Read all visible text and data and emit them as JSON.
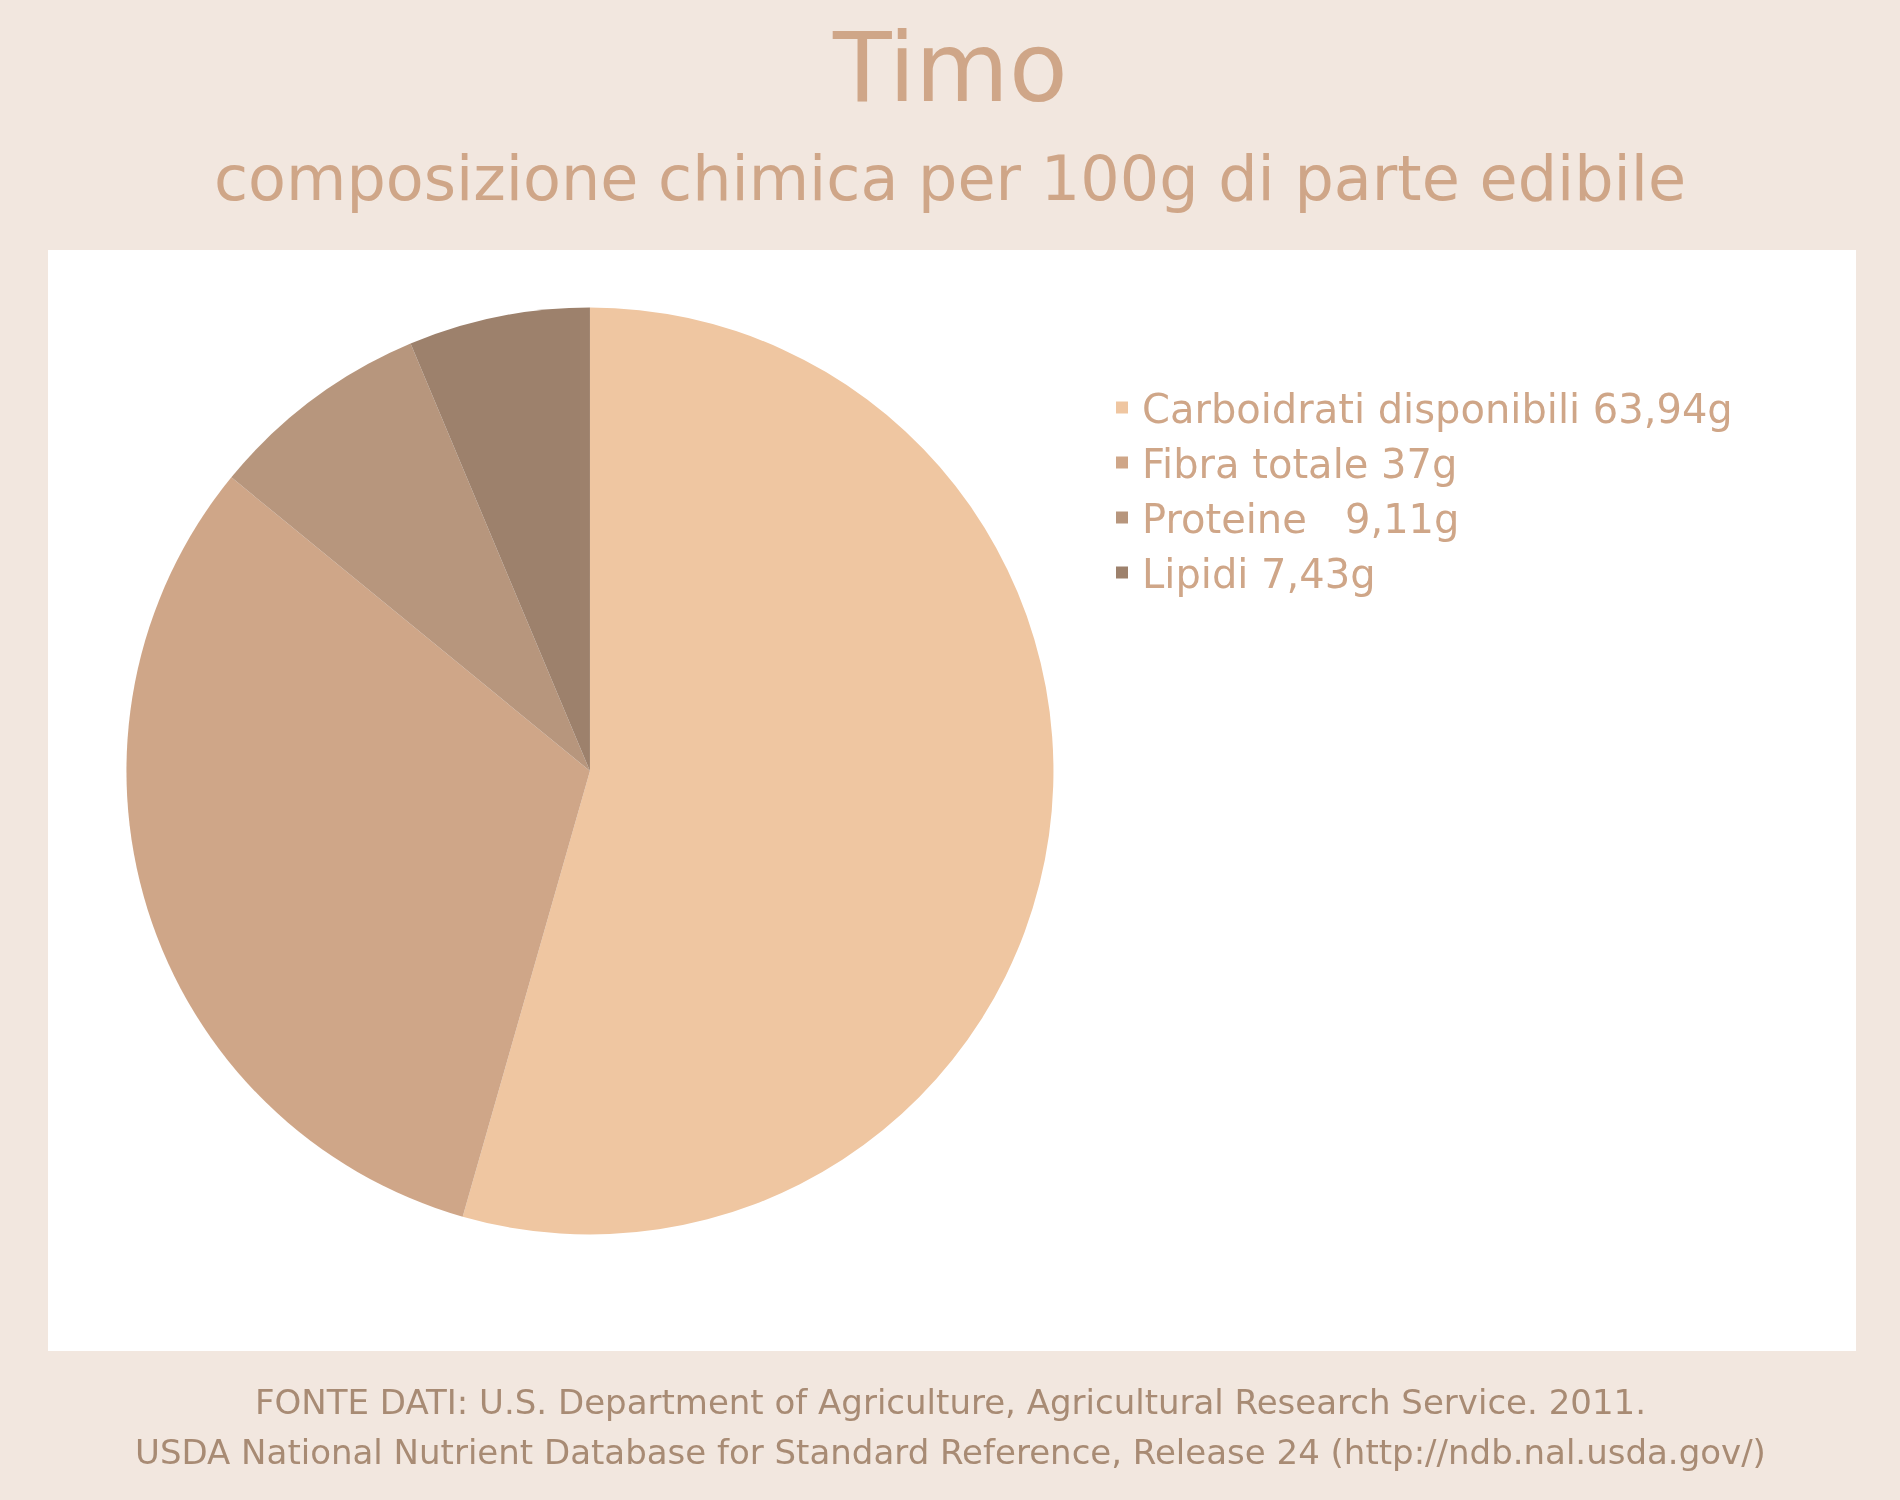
{
  "chart_data": {
    "type": "pie",
    "title": "Timo",
    "subtitle": "composizione chimica per 100g di parte edibile",
    "categories": [
      "Carboidrati disponibili 63,94g",
      "Fibra totale 37g",
      "Proteine   9,11g",
      "Lipidi 7,43g"
    ],
    "values": [
      63.94,
      37,
      9.11,
      7.43
    ],
    "colors": [
      "#efc6a1",
      "#cfa688",
      "#b7967d",
      "#9d816c"
    ],
    "legend": "right",
    "annotations": [
      "FONTE DATI: U.S. Department of Agriculture, Agricultural Research Service. 2011.",
      "USDA National Nutrient Database for Standard Reference, Release 24 (http://ndb.nal.usda.gov/)"
    ]
  }
}
